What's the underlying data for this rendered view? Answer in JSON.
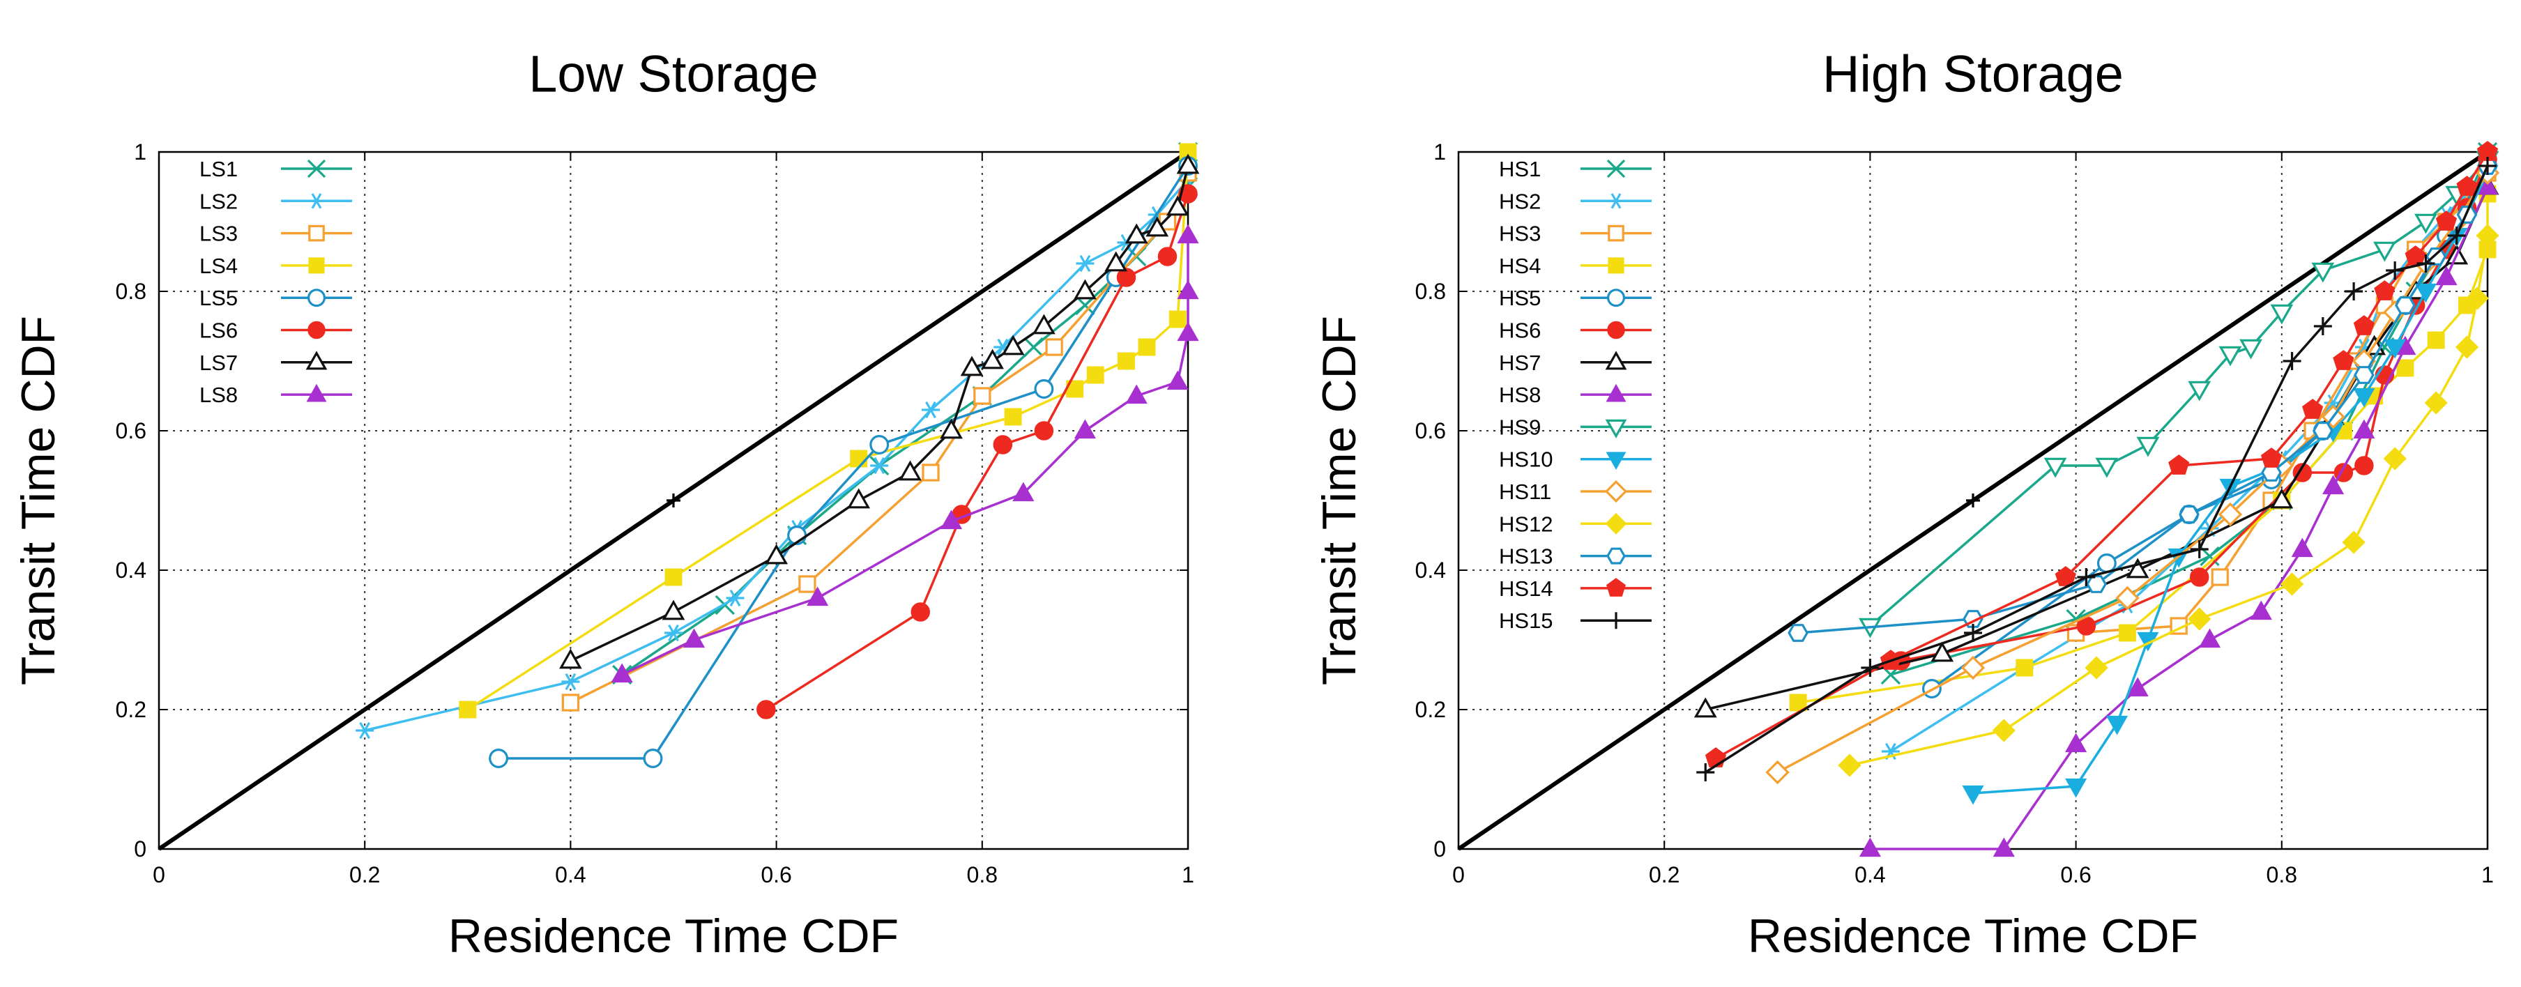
{
  "chart_data": [
    {
      "type": "line",
      "title": "Low Storage",
      "xlabel": "Residence Time CDF",
      "ylabel": "Transit Time CDF",
      "xlim": [
        0,
        1
      ],
      "ylim": [
        0,
        1
      ],
      "xticks": [
        "0",
        "0.2",
        "0.4",
        "0.6",
        "0.8",
        "1"
      ],
      "yticks": [
        "0",
        "0.2",
        "0.4",
        "0.6",
        "0.8",
        "1"
      ],
      "grid": true,
      "legend": "top-left",
      "reference_line": {
        "x": [
          0,
          0.5,
          1
        ],
        "y": [
          0,
          0.5,
          1
        ]
      },
      "series": [
        {
          "name": "LS1",
          "color": "#1aa88a",
          "marker": "x",
          "x": [
            0.45,
            0.55,
            0.62,
            0.7,
            0.8,
            0.85,
            0.9,
            0.95,
            0.98,
            1.0,
            1.0
          ],
          "y": [
            0.25,
            0.35,
            0.45,
            0.55,
            0.65,
            0.72,
            0.78,
            0.85,
            0.9,
            0.95,
            1.0
          ]
        },
        {
          "name": "LS2",
          "color": "#3dbdf0",
          "marker": "asterisk",
          "x": [
            0.2,
            0.4,
            0.5,
            0.56,
            0.62,
            0.7,
            0.75,
            0.82,
            0.9,
            0.94,
            0.97,
            1.0
          ],
          "y": [
            0.17,
            0.24,
            0.31,
            0.36,
            0.46,
            0.55,
            0.63,
            0.72,
            0.84,
            0.87,
            0.91,
            0.96
          ]
        },
        {
          "name": "LS3",
          "color": "#f5a030",
          "marker": "square-open",
          "x": [
            0.4,
            0.63,
            0.75,
            0.8,
            0.87,
            0.93,
            0.98,
            1.0
          ],
          "y": [
            0.21,
            0.38,
            0.54,
            0.65,
            0.72,
            0.82,
            0.9,
            0.97
          ]
        },
        {
          "name": "LS4",
          "color": "#f3dd10",
          "marker": "square-filled",
          "x": [
            0.3,
            0.5,
            0.68,
            0.83,
            0.89,
            0.91,
            0.94,
            0.96,
            0.99,
            1.0
          ],
          "y": [
            0.2,
            0.39,
            0.56,
            0.62,
            0.66,
            0.68,
            0.7,
            0.72,
            0.76,
            1.0
          ]
        },
        {
          "name": "LS5",
          "color": "#1e90c8",
          "marker": "circle-open",
          "x": [
            0.33,
            0.48,
            0.62,
            0.7,
            0.86,
            0.93,
            1.0
          ],
          "y": [
            0.13,
            0.13,
            0.45,
            0.58,
            0.66,
            0.82,
            0.98
          ]
        },
        {
          "name": "LS6",
          "color": "#ee2a20",
          "marker": "circle-filled",
          "x": [
            0.59,
            0.74,
            0.78,
            0.82,
            0.86,
            0.94,
            0.98,
            1.0
          ],
          "y": [
            0.2,
            0.34,
            0.48,
            0.58,
            0.6,
            0.82,
            0.85,
            0.94
          ]
        },
        {
          "name": "LS7",
          "color": "#111111",
          "marker": "triangle-open",
          "x": [
            0.4,
            0.5,
            0.6,
            0.68,
            0.73,
            0.77,
            0.79,
            0.81,
            0.83,
            0.86,
            0.9,
            0.93,
            0.95,
            0.97,
            0.99,
            1.0
          ],
          "y": [
            0.27,
            0.34,
            0.42,
            0.5,
            0.54,
            0.6,
            0.69,
            0.7,
            0.72,
            0.75,
            0.8,
            0.84,
            0.88,
            0.89,
            0.92,
            0.98
          ]
        },
        {
          "name": "LS8",
          "color": "#a830d0",
          "marker": "triangle-filled",
          "x": [
            0.45,
            0.52,
            0.64,
            0.77,
            0.84,
            0.9,
            0.95,
            0.99,
            1.0,
            1.0,
            1.0
          ],
          "y": [
            0.25,
            0.3,
            0.36,
            0.47,
            0.51,
            0.6,
            0.65,
            0.67,
            0.74,
            0.8,
            0.88
          ]
        }
      ]
    },
    {
      "type": "line",
      "title": "High Storage",
      "xlabel": "Residence Time CDF",
      "ylabel": "Transit Time CDF",
      "xlim": [
        0,
        1
      ],
      "ylim": [
        0,
        1
      ],
      "xticks": [
        "0",
        "0.2",
        "0.4",
        "0.6",
        "0.8",
        "1"
      ],
      "yticks": [
        "0",
        "0.2",
        "0.4",
        "0.6",
        "0.8",
        "1"
      ],
      "grid": true,
      "legend": "top-left",
      "reference_line": {
        "x": [
          0,
          0.5,
          1
        ],
        "y": [
          0,
          0.5,
          1
        ]
      },
      "series": [
        {
          "name": "HS1",
          "color": "#1aa88a",
          "marker": "x",
          "x": [
            0.42,
            0.6,
            0.73,
            0.8,
            0.86,
            0.9,
            0.93,
            0.96,
            0.98,
            1.0
          ],
          "y": [
            0.25,
            0.33,
            0.42,
            0.5,
            0.6,
            0.72,
            0.8,
            0.87,
            0.93,
            1.0
          ]
        },
        {
          "name": "HS2",
          "color": "#3dbdf0",
          "marker": "asterisk",
          "x": [
            0.42,
            0.55,
            0.65,
            0.73,
            0.8,
            0.85,
            0.88,
            0.9,
            0.93,
            0.96,
            1.0
          ],
          "y": [
            0.14,
            0.26,
            0.35,
            0.46,
            0.56,
            0.64,
            0.72,
            0.8,
            0.86,
            0.91,
            0.97
          ]
        },
        {
          "name": "HS3",
          "color": "#f5a030",
          "marker": "square-open",
          "x": [
            0.6,
            0.7,
            0.74,
            0.79,
            0.83,
            0.87,
            0.9,
            0.93,
            0.96,
            1.0
          ],
          "y": [
            0.31,
            0.32,
            0.39,
            0.5,
            0.6,
            0.7,
            0.78,
            0.86,
            0.9,
            0.97
          ]
        },
        {
          "name": "HS4",
          "color": "#f3dd10",
          "marker": "square-filled",
          "x": [
            0.33,
            0.55,
            0.65,
            0.8,
            0.86,
            0.89,
            0.92,
            0.95,
            0.98,
            1.0,
            1.0
          ],
          "y": [
            0.21,
            0.26,
            0.31,
            0.5,
            0.6,
            0.65,
            0.69,
            0.73,
            0.78,
            0.86,
            0.94
          ]
        },
        {
          "name": "HS5",
          "color": "#1e90c8",
          "marker": "circle-open",
          "x": [
            0.46,
            0.63,
            0.71,
            0.79,
            0.84,
            0.88,
            0.92,
            0.96,
            1.0
          ],
          "y": [
            0.23,
            0.41,
            0.48,
            0.53,
            0.6,
            0.7,
            0.78,
            0.88,
            0.98
          ]
        },
        {
          "name": "HS6",
          "color": "#ee2a20",
          "marker": "circle-filled",
          "x": [
            0.43,
            0.61,
            0.72,
            0.82,
            0.86,
            0.88,
            0.9,
            0.93,
            0.96,
            0.98,
            1.0
          ],
          "y": [
            0.27,
            0.32,
            0.39,
            0.54,
            0.54,
            0.55,
            0.68,
            0.78,
            0.86,
            0.92,
            0.99
          ]
        },
        {
          "name": "HS7",
          "color": "#111111",
          "marker": "triangle-open",
          "x": [
            0.24,
            0.47,
            0.66,
            0.8,
            0.85,
            0.89,
            0.93,
            0.97,
            1.0
          ],
          "y": [
            0.2,
            0.28,
            0.4,
            0.5,
            0.62,
            0.72,
            0.8,
            0.85,
            0.95
          ]
        },
        {
          "name": "HS8",
          "color": "#a830d0",
          "marker": "triangle-filled",
          "x": [
            0.4,
            0.53,
            0.6,
            0.66,
            0.73,
            0.78,
            0.82,
            0.85,
            0.88,
            0.92,
            0.96,
            1.0
          ],
          "y": [
            0.0,
            0.0,
            0.15,
            0.23,
            0.3,
            0.34,
            0.43,
            0.52,
            0.6,
            0.72,
            0.82,
            0.95
          ]
        },
        {
          "name": "HS9",
          "color": "#1aa88a",
          "marker": "triangle-down-open",
          "x": [
            0.4,
            0.58,
            0.63,
            0.67,
            0.72,
            0.75,
            0.77,
            0.8,
            0.84,
            0.9,
            0.94,
            0.97,
            1.0
          ],
          "y": [
            0.32,
            0.55,
            0.55,
            0.58,
            0.66,
            0.71,
            0.72,
            0.77,
            0.83,
            0.86,
            0.9,
            0.94,
            0.99
          ]
        },
        {
          "name": "HS10",
          "color": "#1aaee0",
          "marker": "triangle-down-filled",
          "x": [
            0.5,
            0.6,
            0.64,
            0.67,
            0.7,
            0.75,
            0.8,
            0.85,
            0.88,
            0.91,
            0.94,
            0.97,
            1.0
          ],
          "y": [
            0.08,
            0.09,
            0.18,
            0.3,
            0.42,
            0.52,
            0.55,
            0.6,
            0.65,
            0.72,
            0.8,
            0.88,
            0.97
          ]
        },
        {
          "name": "HS11",
          "color": "#f5a030",
          "marker": "diamond-open",
          "x": [
            0.31,
            0.5,
            0.65,
            0.75,
            0.8,
            0.85,
            0.88,
            0.91,
            0.94,
            0.97,
            1.0
          ],
          "y": [
            0.11,
            0.26,
            0.36,
            0.48,
            0.55,
            0.62,
            0.7,
            0.77,
            0.84,
            0.9,
            0.97
          ]
        },
        {
          "name": "HS12",
          "color": "#f3dd10",
          "marker": "diamond-filled",
          "x": [
            0.38,
            0.53,
            0.62,
            0.72,
            0.81,
            0.87,
            0.91,
            0.95,
            0.98,
            0.99,
            1.0
          ],
          "y": [
            0.12,
            0.17,
            0.26,
            0.33,
            0.38,
            0.44,
            0.56,
            0.64,
            0.72,
            0.79,
            0.88
          ]
        },
        {
          "name": "HS13",
          "color": "#1e90c8",
          "marker": "hexagon-open",
          "x": [
            0.33,
            0.5,
            0.62,
            0.71,
            0.79,
            0.84,
            0.88,
            0.92,
            0.95,
            0.98,
            1.0
          ],
          "y": [
            0.31,
            0.33,
            0.38,
            0.48,
            0.54,
            0.6,
            0.68,
            0.78,
            0.85,
            0.91,
            0.98
          ]
        },
        {
          "name": "HS14",
          "color": "#ee2a20",
          "marker": "pentagon-filled",
          "x": [
            0.25,
            0.42,
            0.59,
            0.7,
            0.79,
            0.83,
            0.86,
            0.88,
            0.9,
            0.93,
            0.96,
            0.98,
            1.0
          ],
          "y": [
            0.13,
            0.27,
            0.39,
            0.55,
            0.56,
            0.63,
            0.7,
            0.75,
            0.8,
            0.85,
            0.9,
            0.95,
            1.0
          ]
        },
        {
          "name": "HS15",
          "color": "#111111",
          "marker": "plus",
          "x": [
            0.24,
            0.4,
            0.5,
            0.61,
            0.72,
            0.81,
            0.84,
            0.87,
            0.91,
            0.94,
            0.97,
            1.0
          ],
          "y": [
            0.11,
            0.26,
            0.31,
            0.39,
            0.43,
            0.7,
            0.75,
            0.8,
            0.83,
            0.84,
            0.88,
            0.98
          ]
        }
      ]
    }
  ]
}
